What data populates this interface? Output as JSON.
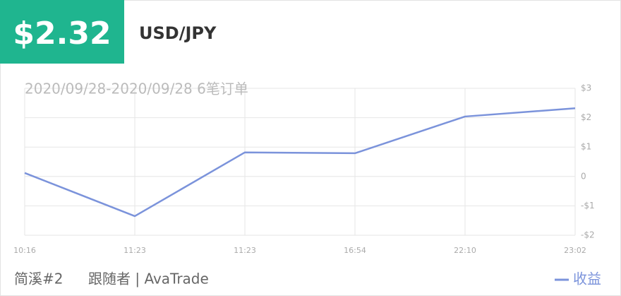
{
  "header": {
    "amount": "$2.32",
    "title": "USD/JPY",
    "subtitle": "2020/09/28-2020/09/28 6笔订单"
  },
  "chart_data": {
    "type": "line",
    "categories": [
      "10:16",
      "11:23",
      "11:23",
      "16:54",
      "22:10",
      "23:02"
    ],
    "series": [
      {
        "name": "收益",
        "color": "#7b93db",
        "values": [
          0.12,
          -1.35,
          0.82,
          0.79,
          2.04,
          2.32
        ]
      }
    ],
    "ylim": [
      -2,
      3
    ],
    "yticks": [
      {
        "value": -2,
        "label": "-$2"
      },
      {
        "value": -1,
        "label": "-$1"
      },
      0,
      {
        "value": 1,
        "label": "$1"
      },
      {
        "value": 2,
        "label": "$2"
      },
      {
        "value": 3,
        "label": "$3"
      }
    ],
    "grid": true
  },
  "footer": {
    "name": "简溪#2",
    "role": "跟随者 | AvaTrade"
  }
}
